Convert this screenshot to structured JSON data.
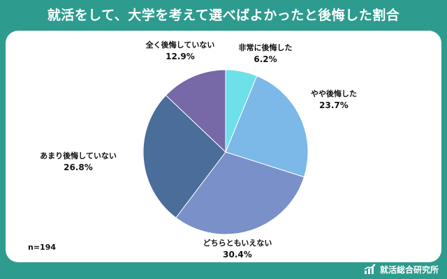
{
  "title": "就活をして、大学を考えて選べばよかったと後悔した割合",
  "sample_size": "n=194",
  "brand": {
    "icon": "bar-chart-icon",
    "name": "就活総合研究所"
  },
  "colors": {
    "background": "#2e9b8f",
    "card": "#ffffff"
  },
  "chart_data": {
    "type": "pie",
    "title": "就活をして、大学を考えて選べばよかったと後悔した割合",
    "start_angle_deg": 0,
    "direction": "clockwise",
    "slices": [
      {
        "label": "非常に後悔した",
        "value": 6.2,
        "value_label": "6.2%",
        "color": "#6de0e8"
      },
      {
        "label": "やや後悔した",
        "value": 23.7,
        "value_label": "23.7%",
        "color": "#7cb8e8"
      },
      {
        "label": "どちらともいえない",
        "value": 30.4,
        "value_label": "30.4%",
        "color": "#7a90c9"
      },
      {
        "label": "あまり後悔していない",
        "value": 26.8,
        "value_label": "26.8%",
        "color": "#4a6d9a"
      },
      {
        "label": "全く後悔していない",
        "value": 12.9,
        "value_label": "12.9%",
        "color": "#7768a8"
      }
    ]
  }
}
